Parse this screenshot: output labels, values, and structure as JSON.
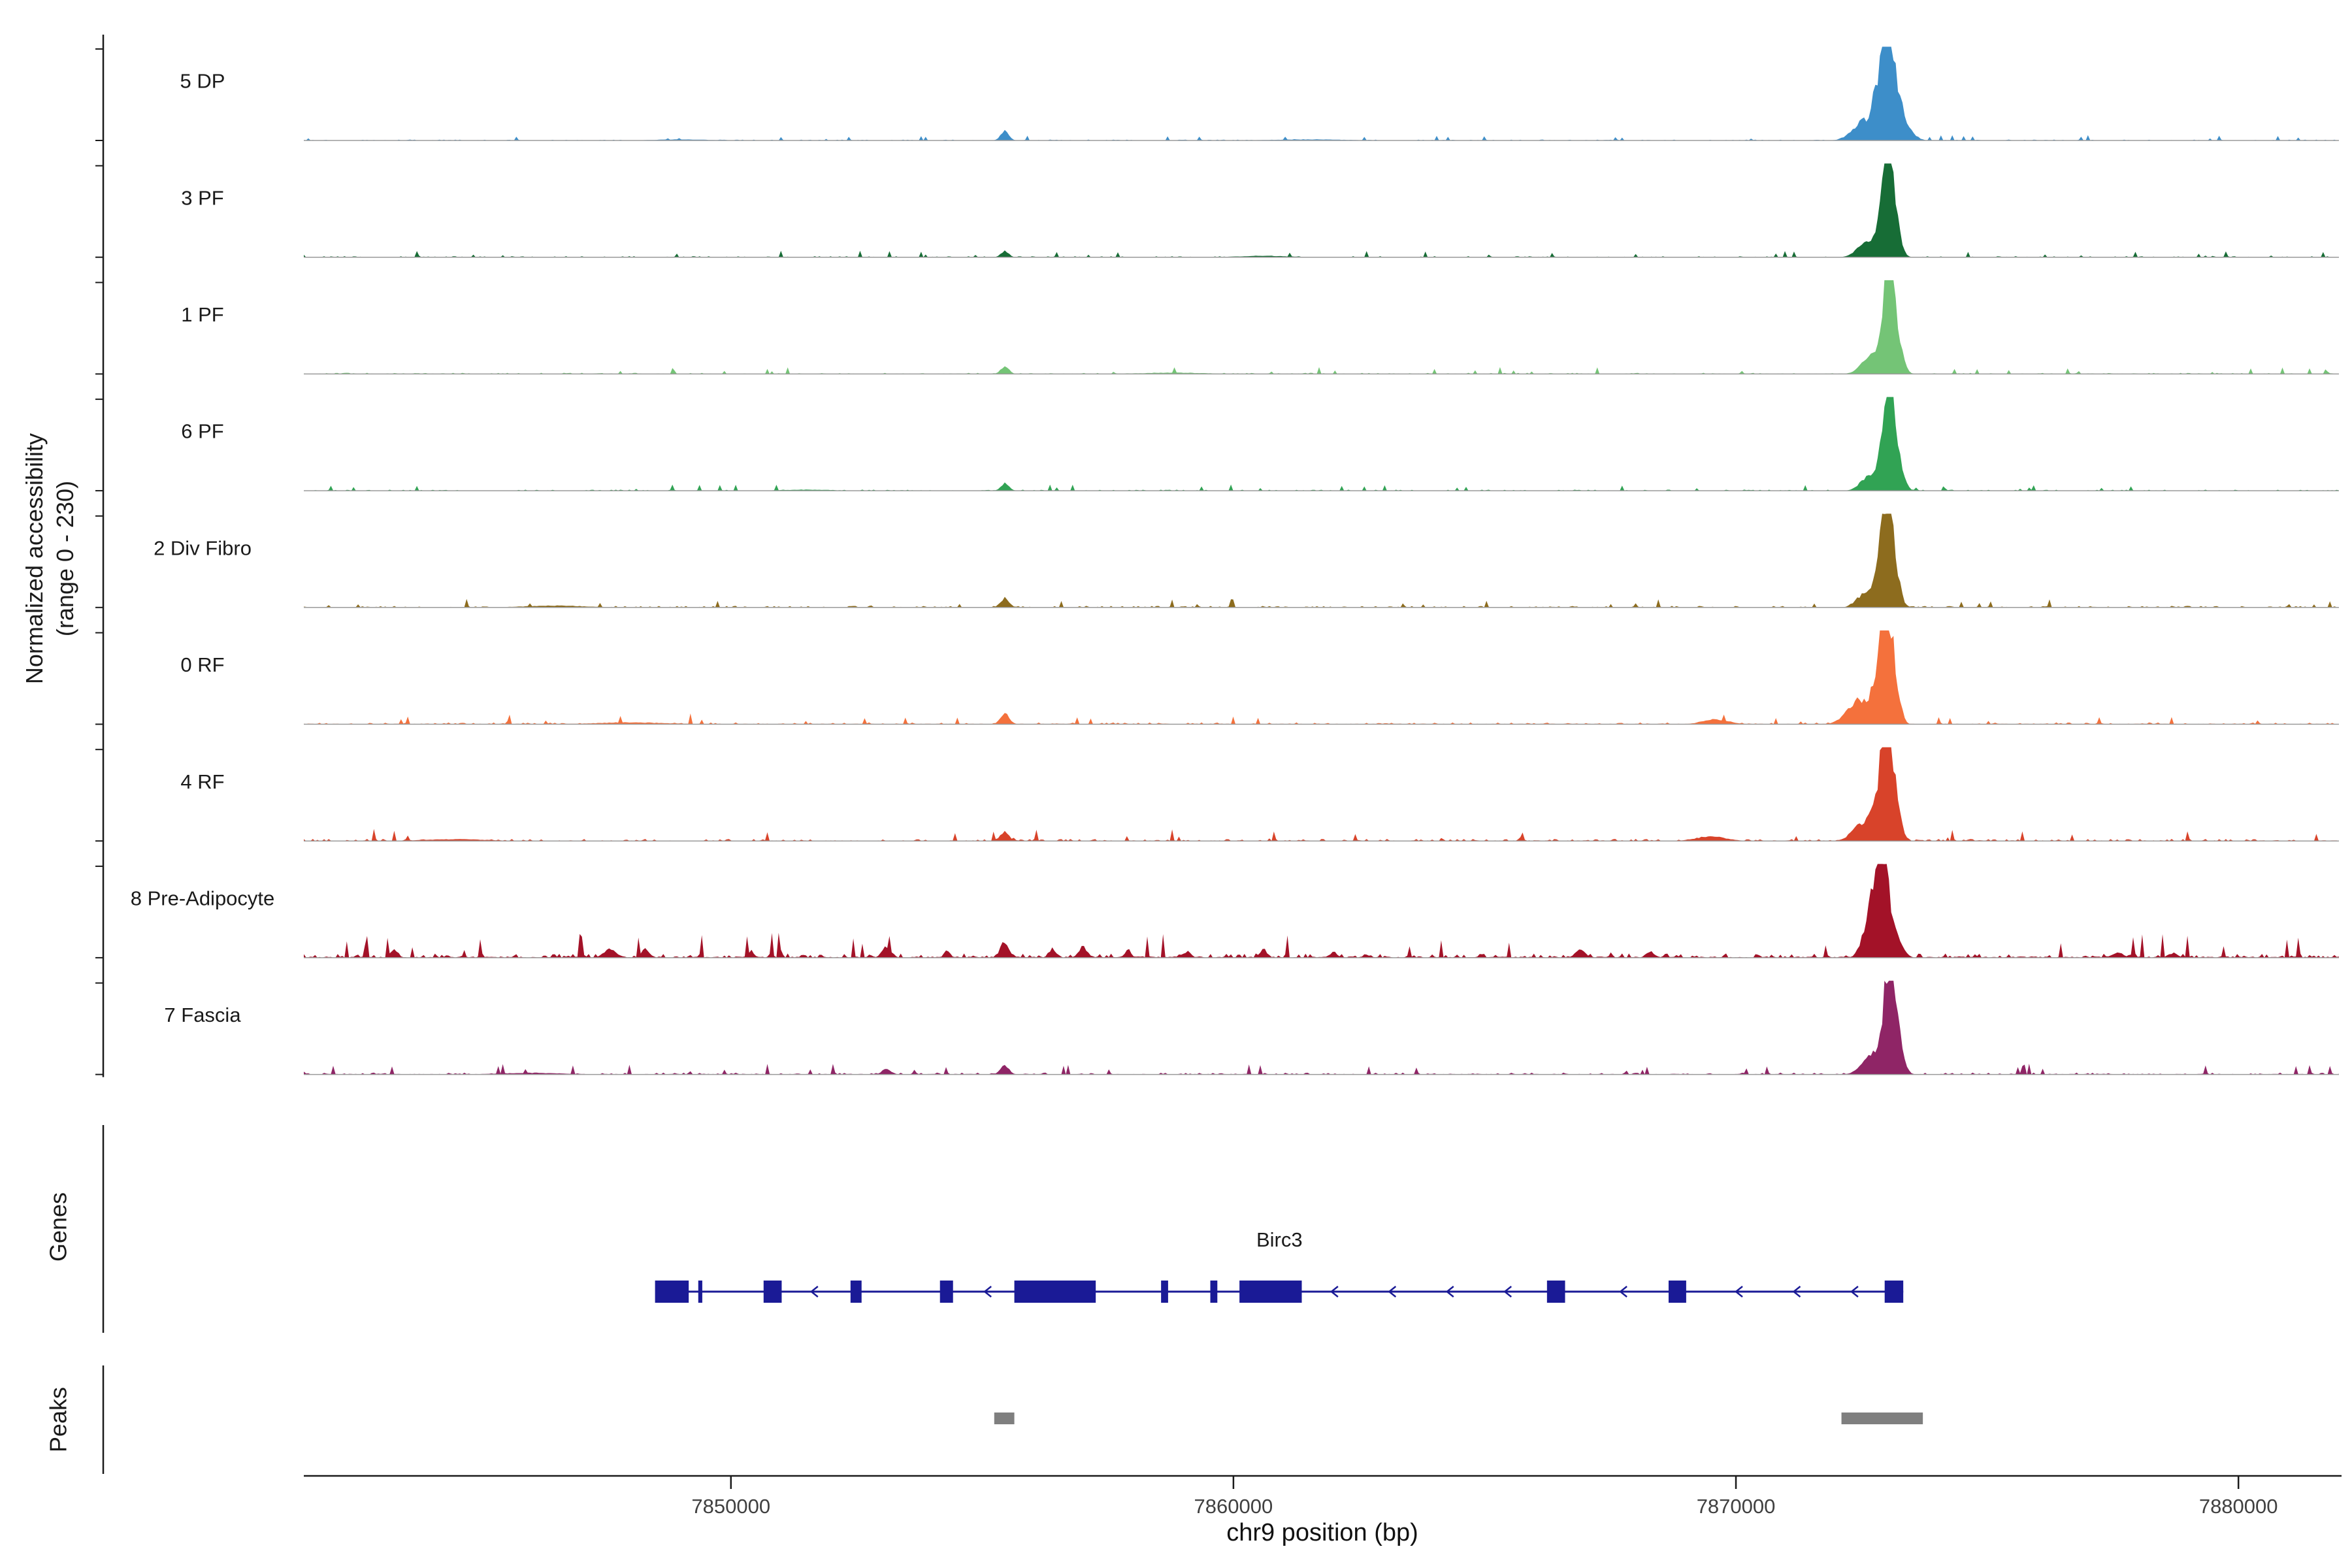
{
  "figure": {
    "ylabel_line1": "Normalized accessibility",
    "ylabel_line2": "(range 0 - 230)",
    "genes_label": "Genes",
    "peaks_label": "Peaks",
    "xlabel": "chr9 position (bp)"
  },
  "style": {
    "axis_color": "#1a1a1a",
    "baseline_color": "#9a9a9a",
    "tick_label_color": "#404040",
    "track_label_color": "#1a1a1a",
    "gene_color": "#1a1a96",
    "gene_label_color": "#1a1a1a",
    "peak_color": "#7f7f7f"
  },
  "chart_data": {
    "type": "area",
    "title": "",
    "xlabel": "chr9 position (bp)",
    "ylabel": "Normalized accessibility (range 0 - 230)",
    "x_domain": [
      7841500,
      7882000
    ],
    "x_ticks": [
      7850000,
      7860000,
      7870000,
      7880000
    ],
    "grid": false,
    "legend": "none",
    "y_range_per_track": [
      0,
      230
    ],
    "tracks": [
      {
        "label": "5 DP",
        "color": "#3d8ec9",
        "seed": 101,
        "noise": 0.02,
        "peaks": [
          [
            7872520,
            210,
            0.2
          ],
          [
            7872840,
            120,
            0.5
          ],
          [
            7873000,
            90,
            0.97
          ],
          [
            7873170,
            115,
            0.55
          ],
          [
            7873380,
            150,
            0.14
          ],
          [
            7855450,
            80,
            0.1
          ],
          [
            7849000,
            500,
            0.012
          ],
          [
            7861500,
            700,
            0.012
          ]
        ]
      },
      {
        "label": "3 PF",
        "color": "#176d36",
        "seed": 202,
        "noise": 0.024,
        "peaks": [
          [
            7872600,
            180,
            0.16
          ],
          [
            7872900,
            105,
            0.45
          ],
          [
            7873030,
            85,
            1.0
          ],
          [
            7873170,
            100,
            0.45
          ],
          [
            7855450,
            75,
            0.07
          ],
          [
            7860600,
            500,
            0.015
          ]
        ]
      },
      {
        "label": "1 PF",
        "color": "#74c476",
        "seed": 303,
        "noise": 0.026,
        "peaks": [
          [
            7872650,
            170,
            0.18
          ],
          [
            7872950,
            100,
            0.55
          ],
          [
            7873060,
            80,
            1.0
          ],
          [
            7873200,
            110,
            0.4
          ],
          [
            7855450,
            80,
            0.08
          ],
          [
            7858800,
            600,
            0.015
          ]
        ]
      },
      {
        "label": "6 PF",
        "color": "#31a354",
        "seed": 404,
        "noise": 0.024,
        "peaks": [
          [
            7872650,
            170,
            0.15
          ],
          [
            7872950,
            100,
            0.5
          ],
          [
            7873070,
            85,
            0.92
          ],
          [
            7873220,
            110,
            0.35
          ],
          [
            7855450,
            80,
            0.08
          ],
          [
            7851500,
            500,
            0.012
          ]
        ]
      },
      {
        "label": "2 Div Fibro",
        "color": "#8d6c1e",
        "seed": 505,
        "noise": 0.035,
        "peaks": [
          [
            7872600,
            170,
            0.18
          ],
          [
            7872900,
            100,
            0.55
          ],
          [
            7873020,
            85,
            0.88
          ],
          [
            7873160,
            105,
            0.4
          ],
          [
            7855450,
            85,
            0.1
          ],
          [
            7846500,
            600,
            0.02
          ]
        ]
      },
      {
        "label": "0 RF",
        "color": "#f4713c",
        "seed": 606,
        "noise": 0.04,
        "peaks": [
          [
            7872450,
            230,
            0.28
          ],
          [
            7872850,
            110,
            0.6
          ],
          [
            7873000,
            85,
            1.0
          ],
          [
            7873150,
            100,
            0.55
          ],
          [
            7855450,
            85,
            0.12
          ],
          [
            7869600,
            260,
            0.055
          ],
          [
            7848000,
            700,
            0.02
          ]
        ]
      },
      {
        "label": "4 RF",
        "color": "#d8432a",
        "seed": 707,
        "noise": 0.045,
        "peaks": [
          [
            7872550,
            200,
            0.22
          ],
          [
            7872880,
            110,
            0.6
          ],
          [
            7873020,
            85,
            1.0
          ],
          [
            7873170,
            105,
            0.5
          ],
          [
            7855450,
            85,
            0.1
          ],
          [
            7869500,
            300,
            0.05
          ],
          [
            7844500,
            600,
            0.02
          ]
        ]
      },
      {
        "label": "8 Pre-Adipocyte",
        "color": "#a31228",
        "seed": 808,
        "noise": 0.095,
        "peaks": [
          [
            7872700,
            150,
            0.5
          ],
          [
            7872860,
            100,
            0.78
          ],
          [
            7873010,
            90,
            0.55
          ],
          [
            7873200,
            120,
            0.2
          ],
          [
            7843300,
            70,
            0.1
          ],
          [
            7847600,
            130,
            0.09
          ],
          [
            7848300,
            80,
            0.1
          ],
          [
            7850400,
            70,
            0.06
          ],
          [
            7853100,
            90,
            0.13
          ],
          [
            7854300,
            60,
            0.08
          ],
          [
            7855450,
            85,
            0.18
          ],
          [
            7856400,
            75,
            0.1
          ],
          [
            7857000,
            85,
            0.12
          ],
          [
            7857900,
            60,
            0.09
          ],
          [
            7859100,
            60,
            0.07
          ],
          [
            7860600,
            75,
            0.09
          ],
          [
            7862000,
            70,
            0.06
          ],
          [
            7866900,
            95,
            0.1
          ],
          [
            7868300,
            75,
            0.07
          ],
          [
            7877600,
            110,
            0.06
          ],
          [
            7878700,
            85,
            0.05
          ]
        ]
      },
      {
        "label": "7 Fascia",
        "color": "#8f2566",
        "seed": 909,
        "noise": 0.042,
        "peaks": [
          [
            7872650,
            170,
            0.2
          ],
          [
            7872950,
            100,
            0.55
          ],
          [
            7873080,
            80,
            1.0
          ],
          [
            7873220,
            105,
            0.45
          ],
          [
            7855450,
            85,
            0.1
          ],
          [
            7853100,
            90,
            0.06
          ],
          [
            7846000,
            600,
            0.018
          ]
        ]
      }
    ],
    "genes": {
      "items": [
        {
          "name": "Birc3",
          "strand": "-",
          "start": 7848500,
          "end": 7873330,
          "exons": [
            [
              7848490,
              7849160
            ],
            [
              7849350,
              7849430
            ],
            [
              7850650,
              7851010
            ],
            [
              7852380,
              7852600
            ],
            [
              7854160,
              7854420
            ],
            [
              7855640,
              7857260
            ],
            [
              7858560,
              7858700
            ],
            [
              7859540,
              7859680
            ],
            [
              7860120,
              7861360
            ],
            [
              7866240,
              7866600
            ],
            [
              7868660,
              7869010
            ],
            [
              7872960,
              7873330
            ]
          ]
        }
      ]
    },
    "peaks": {
      "items": [
        [
          7855240,
          7855640
        ],
        [
          7872100,
          7873720
        ]
      ]
    }
  }
}
